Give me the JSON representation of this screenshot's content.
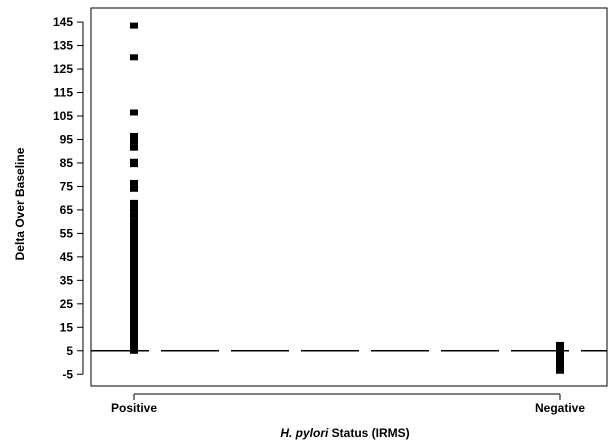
{
  "chart_data": {
    "type": "scatter",
    "title": "",
    "xlabel_italic": "H. pylori",
    "xlabel_rest": " Status (IRMS)",
    "ylabel": "Delta Over Baseline",
    "categories": [
      "Positive",
      "Negative"
    ],
    "ylim": [
      -10,
      151
    ],
    "yticks": [
      -5,
      5,
      15,
      25,
      35,
      45,
      55,
      65,
      75,
      85,
      95,
      105,
      115,
      125,
      135,
      145
    ],
    "reference_line": {
      "value": 5,
      "style": "dashed"
    },
    "grid": false,
    "legend": "none",
    "series": [
      {
        "category": "Positive",
        "values": [
          143.5,
          130,
          106.5,
          96.5,
          94,
          91.5,
          85.5,
          84.5,
          76.5,
          74,
          68,
          66,
          65,
          62.5,
          60,
          58,
          56,
          54.5,
          53,
          51.5,
          50,
          48,
          46,
          44,
          42,
          40,
          38,
          36,
          34,
          32,
          30,
          28,
          26,
          24,
          22,
          20,
          18,
          16,
          14,
          12,
          10,
          8,
          6,
          5
        ]
      },
      {
        "category": "Negative",
        "values": [
          7.5,
          6.5,
          5.5,
          4.5,
          3.5,
          2.5,
          1.5,
          0.5,
          -0.5,
          -1.5,
          -2.5,
          -3.5
        ]
      }
    ]
  }
}
